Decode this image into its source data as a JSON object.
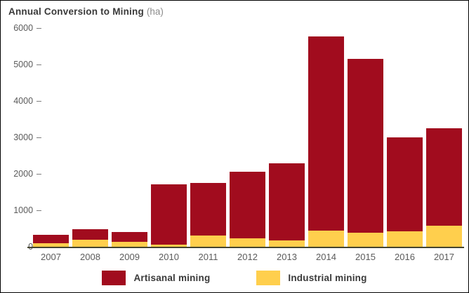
{
  "chart_data": {
    "type": "bar",
    "stacked": true,
    "title": "Annual Conversion to Mining",
    "unit_label": "(ha)",
    "categories": [
      "2007",
      "2008",
      "2009",
      "2010",
      "2011",
      "2012",
      "2013",
      "2014",
      "2015",
      "2016",
      "2017"
    ],
    "series": [
      {
        "name": "Artisanal mining",
        "color": "#A10C1E",
        "values": [
          225,
          290,
          260,
          1660,
          1450,
          1830,
          2120,
          5330,
          4770,
          2580,
          2690
        ]
      },
      {
        "name": "Industrial mining",
        "color": "#FFCF4D",
        "values": [
          100,
          190,
          140,
          50,
          310,
          230,
          175,
          440,
          390,
          420,
          570
        ]
      }
    ],
    "ylim": [
      0,
      6000
    ],
    "ytick_labels": [
      "6000",
      "5000",
      "4000",
      "3000",
      "2000",
      "1000",
      "0"
    ],
    "tick_dash": "–",
    "grid": false,
    "legend_position": "bottom",
    "axis_line_color": "#45452F",
    "text_color": "#5B5B5B"
  }
}
